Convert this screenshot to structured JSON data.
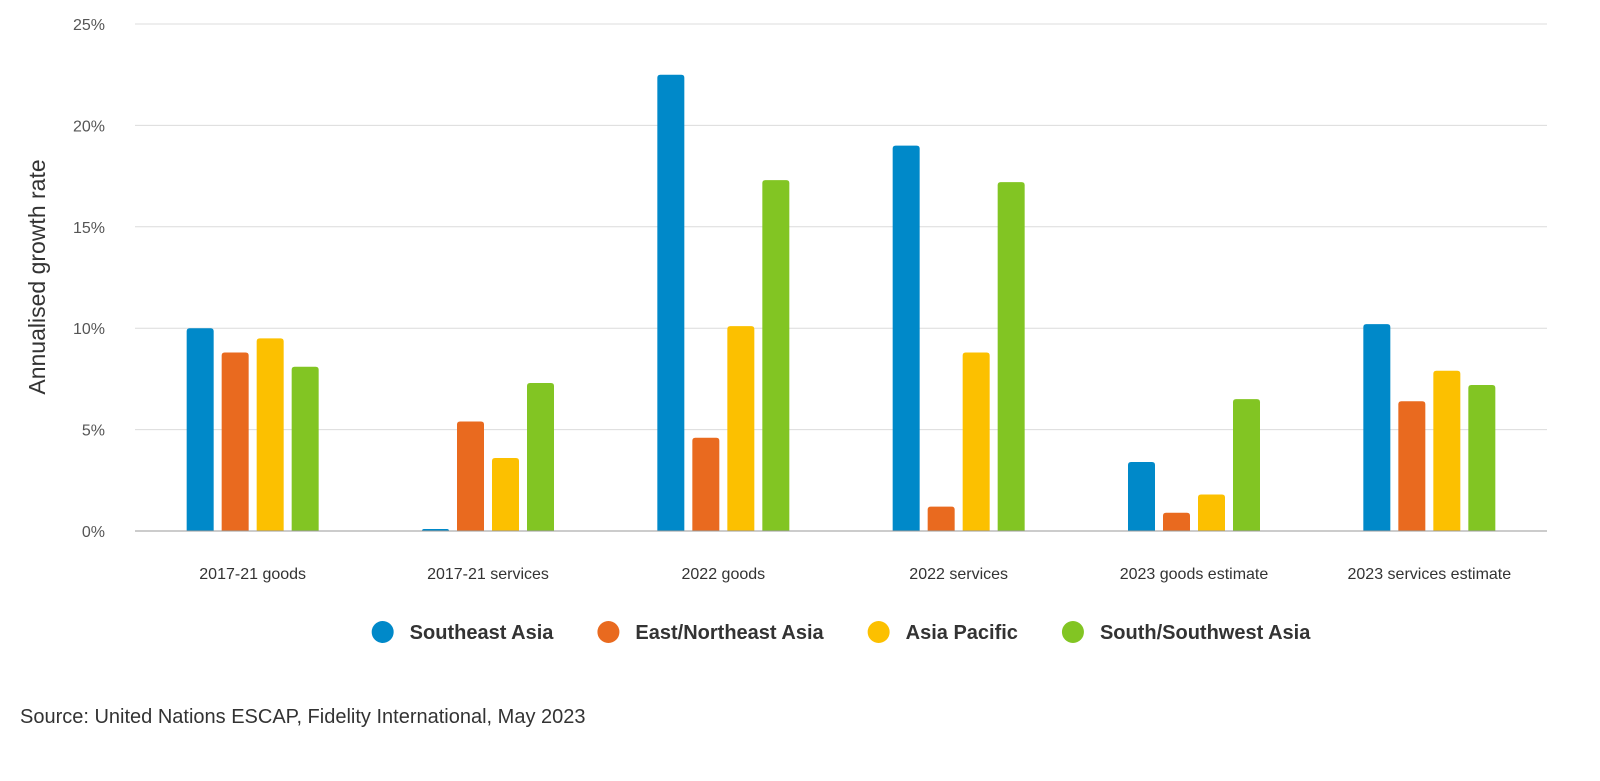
{
  "chart_data": {
    "type": "bar",
    "ylabel": "Annualised growth rate",
    "ylim": [
      0,
      25
    ],
    "ytick_values": [
      0,
      5,
      10,
      15,
      20,
      25
    ],
    "ytick_labels": [
      "0%",
      "5%",
      "10%",
      "15%",
      "20%",
      "25%"
    ],
    "grid": true,
    "legend_position": "bottom-center",
    "categories": [
      "2017-21 goods",
      "2017-21 services",
      "2022 goods",
      "2022 services",
      "2023 goods estimate",
      "2023 services estimate"
    ],
    "series": [
      {
        "name": "Southeast Asia",
        "color": "#0089C9",
        "values": [
          10.0,
          0.1,
          22.5,
          19.0,
          3.4,
          10.2
        ]
      },
      {
        "name": "East/Northeast Asia",
        "color": "#E96A1F",
        "values": [
          8.8,
          5.4,
          4.6,
          1.2,
          0.9,
          6.4
        ]
      },
      {
        "name": "Asia Pacific",
        "color": "#FCC000",
        "values": [
          9.5,
          3.6,
          10.1,
          8.8,
          1.8,
          7.9
        ]
      },
      {
        "name": "South/Southwest Asia",
        "color": "#82C523",
        "values": [
          8.1,
          7.3,
          17.3,
          17.2,
          6.5,
          7.2
        ]
      }
    ]
  },
  "source": "Source: United Nations ESCAP, Fidelity International, May 2023"
}
